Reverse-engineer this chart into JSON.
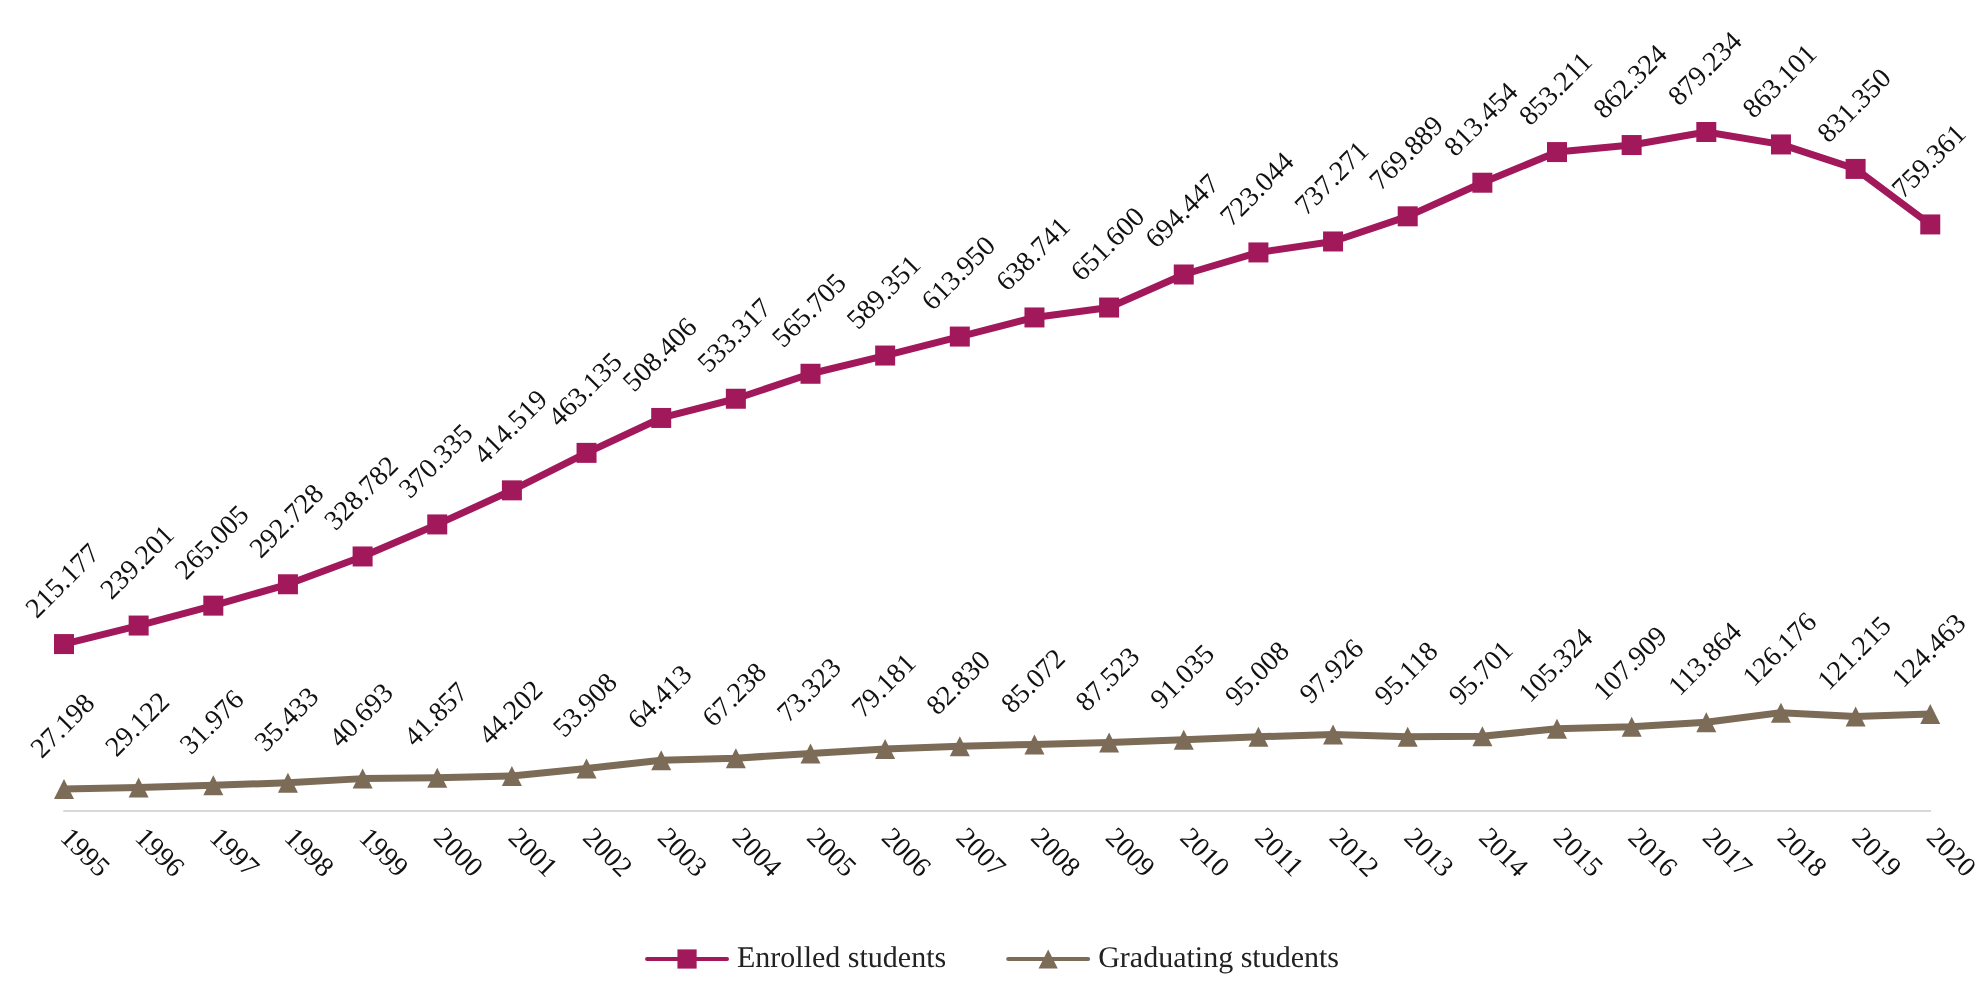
{
  "chart_data": {
    "type": "line",
    "categories": [
      "1995",
      "1996",
      "1997",
      "1998",
      "1999",
      "2000",
      "2001",
      "2002",
      "2003",
      "2004",
      "2005",
      "2006",
      "2007",
      "2008",
      "2009",
      "2010",
      "2011",
      "2012",
      "2013",
      "2014",
      "2015",
      "2016",
      "2017",
      "2018",
      "2019",
      "2020"
    ],
    "series": [
      {
        "name": "Enrolled students",
        "color": "#a2195b",
        "marker": "square",
        "values": [
          215177,
          239201,
          265005,
          292728,
          328782,
          370335,
          414519,
          463135,
          508406,
          533317,
          565705,
          589351,
          613950,
          638741,
          651600,
          694447,
          723044,
          737271,
          769889,
          813454,
          853211,
          862324,
          879234,
          863101,
          831350,
          759361
        ],
        "value_labels": [
          "215.177",
          "239.201",
          "265.005",
          "292.728",
          "328.782",
          "370.335",
          "414.519",
          "463.135",
          "508.406",
          "533.317",
          "565.705",
          "589.351",
          "613.950",
          "638.741",
          "651.600",
          "694.447",
          "723.044",
          "737.271",
          "769.889",
          "813.454",
          "853.211",
          "862.324",
          "879.234",
          "863.101",
          "831.350",
          "759.361"
        ]
      },
      {
        "name": "Graduating students",
        "color": "#7b6b57",
        "marker": "triangle",
        "values": [
          27198,
          29122,
          31976,
          35433,
          40693,
          41857,
          44202,
          53908,
          64413,
          67238,
          73323,
          79181,
          82830,
          85072,
          87523,
          91035,
          95008,
          97926,
          95118,
          95701,
          105324,
          107909,
          113864,
          126176,
          121215,
          124463
        ],
        "value_labels": [
          "27.198",
          "29.122",
          "31.976",
          "35.433",
          "40.693",
          "41.857",
          "44.202",
          "53.908",
          "64.413",
          "67.238",
          "73.323",
          "79.181",
          "82.830",
          "85.072",
          "87.523",
          "91.035",
          "95.008",
          "97.926",
          "95.118",
          "95.701",
          "105.324",
          "107.909",
          "113.864",
          "126.176",
          "121.215",
          "124.463"
        ]
      }
    ],
    "legend": "bottom",
    "grid": false,
    "line_style": "solid"
  }
}
